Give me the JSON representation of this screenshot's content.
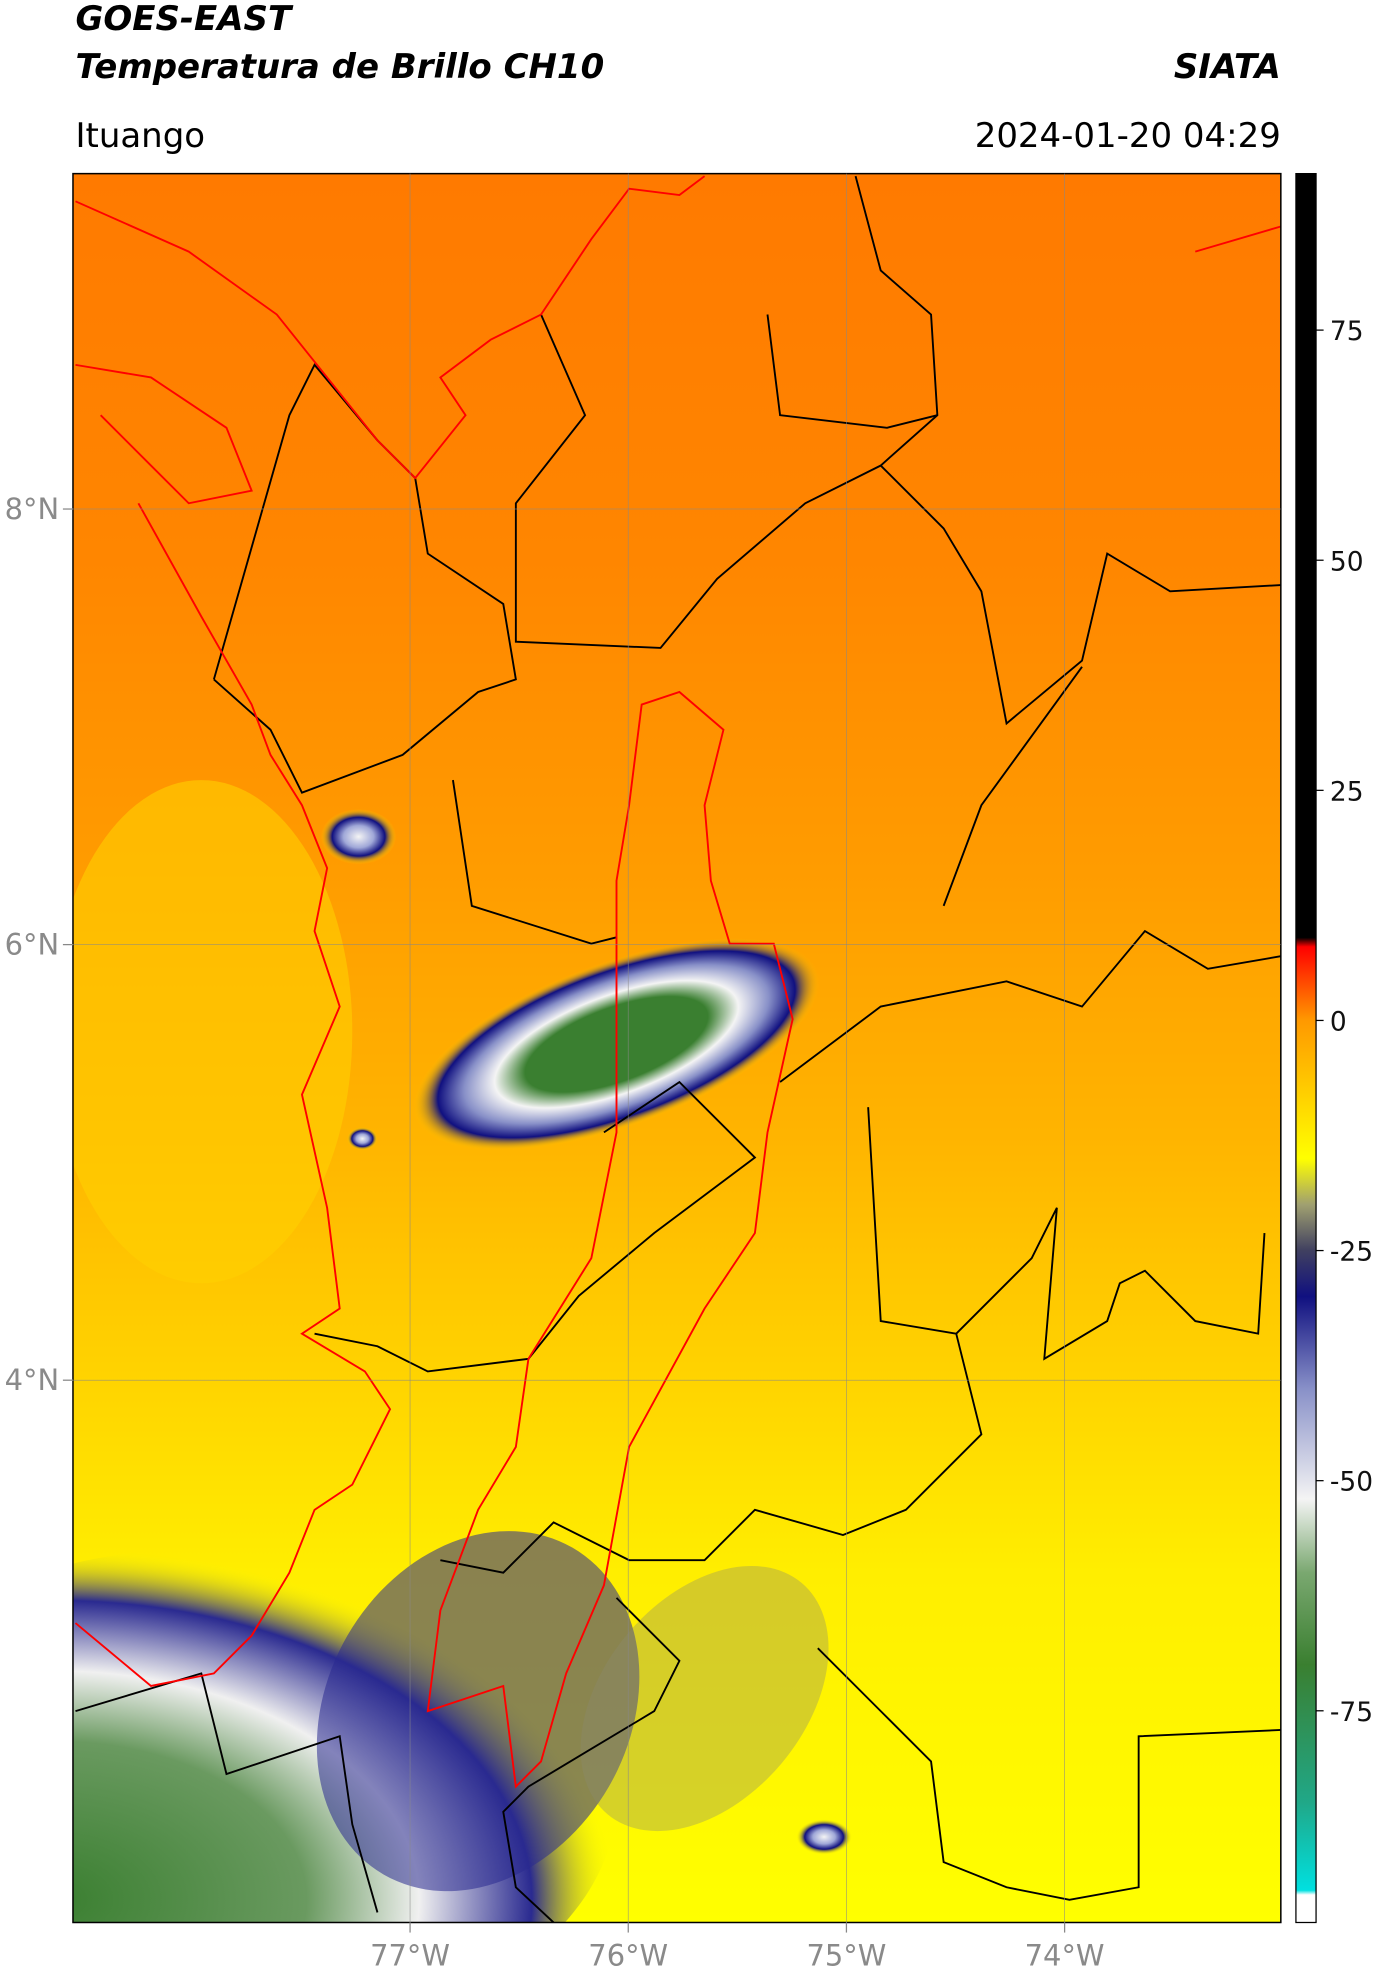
{
  "header": {
    "title": "GOES-EAST",
    "subtitle": "Temperatura de Brillo CH10",
    "brand": "SIATA",
    "location": "Ituango",
    "timestamp": "2024-01-20 04:29"
  },
  "map": {
    "xlim": [
      -78.545,
      -73.009
    ],
    "ylim": [
      1.51,
      9.54
    ],
    "xticks": [
      {
        "value": -77,
        "label": "77°W"
      },
      {
        "value": -76,
        "label": "76°W"
      },
      {
        "value": -75,
        "label": "75°W"
      },
      {
        "value": -74,
        "label": "74°W"
      }
    ],
    "yticks": [
      {
        "value": 8,
        "label": "8°N"
      },
      {
        "value": 6,
        "label": "6°N"
      },
      {
        "value": 4,
        "label": "4°N"
      }
    ]
  },
  "colorbar": {
    "lim": [
      -98,
      92
    ],
    "ticks": [
      75,
      50,
      25,
      0,
      -25,
      -50,
      -75
    ],
    "stops": [
      {
        "value": -98,
        "color": "#ffffff"
      },
      {
        "value": -95,
        "color": "#ffffff"
      },
      {
        "value": -94.5,
        "color": "#00e0e0"
      },
      {
        "value": -85,
        "color": "#20a888"
      },
      {
        "value": -70,
        "color": "#3a7f30"
      },
      {
        "value": -60,
        "color": "#7aa870"
      },
      {
        "value": -52,
        "color": "#f4f4f4"
      },
      {
        "value": -40,
        "color": "#8890c8"
      },
      {
        "value": -30,
        "color": "#101080"
      },
      {
        "value": -25,
        "color": "#404060"
      },
      {
        "value": -20,
        "color": "#a0a070"
      },
      {
        "value": -15,
        "color": "#ffff00"
      },
      {
        "value": 0,
        "color": "#ff9900"
      },
      {
        "value": 8,
        "color": "#ff0000"
      },
      {
        "value": 9,
        "color": "#000000"
      },
      {
        "value": 92,
        "color": "#000000"
      }
    ]
  }
}
